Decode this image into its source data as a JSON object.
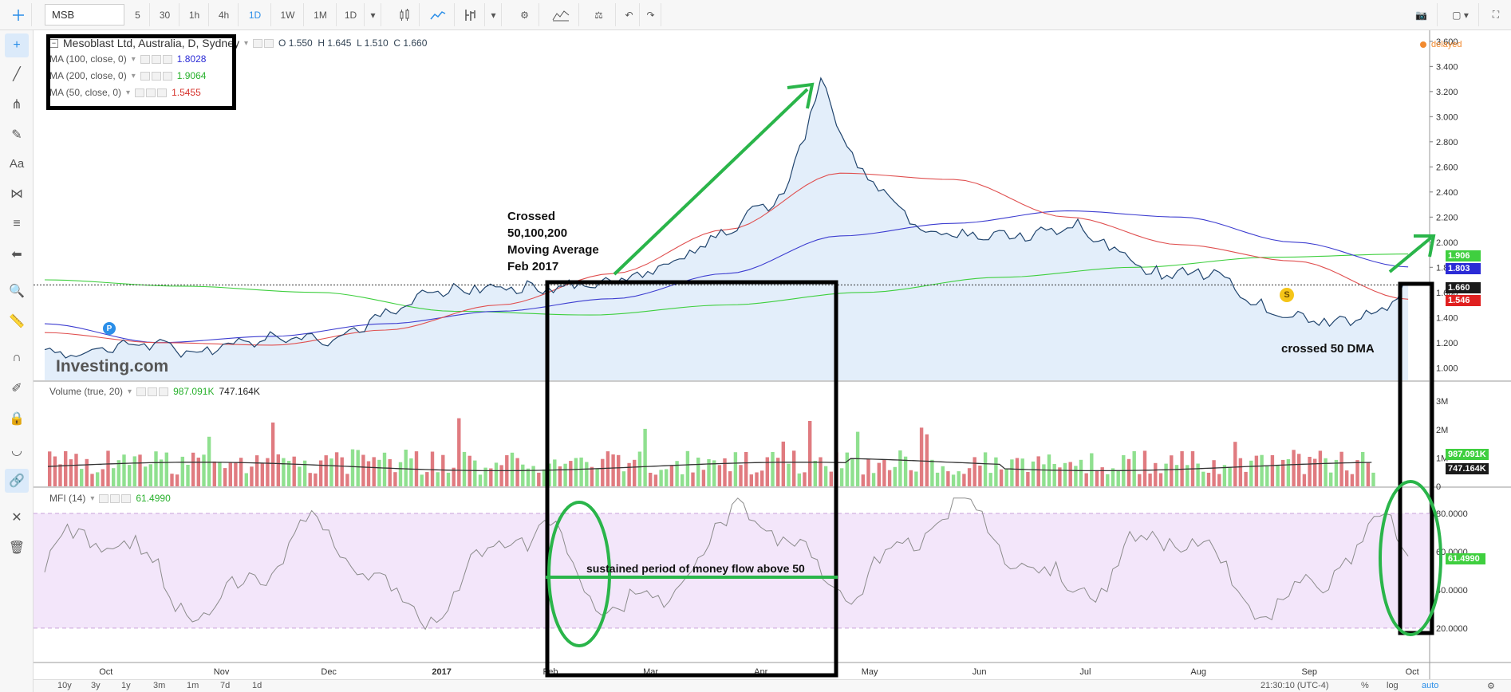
{
  "toolbar": {
    "symbol": "MSB",
    "intervals": [
      "5",
      "30",
      "1h",
      "4h",
      "1D",
      "1W",
      "1M"
    ],
    "active_interval": "1D",
    "dropdown_interval": "1D"
  },
  "legend": {
    "title": "Mesoblast Ltd, Australia, D, Sydney",
    "ohlc": "O 1.550  H 1.645  L 1.510  C 1.660",
    "ma100_label": "MA (100, close, 0)",
    "ma100_value": "1.8028",
    "ma200_label": "MA (200, close, 0)",
    "ma200_value": "1.9064",
    "ma50_label": "MA (50, close, 0)",
    "ma50_value": "1.5455",
    "delayed": "delayed"
  },
  "volume_legend": {
    "label": "Volume (true, 20)",
    "value1": "987.091K",
    "value2": "747.164K"
  },
  "mfi_legend": {
    "label": "MFI (14)",
    "value": "61.4990"
  },
  "annotations": {
    "crossed_1": "Crossed",
    "crossed_2": "50,100,200",
    "crossed_3": "Moving Average",
    "crossed_4": "Feb 2017",
    "crossed_50": "crossed 50 DMA",
    "mfi_note": "sustained period of money flow above 50"
  },
  "watermark": "Investing.com",
  "markers": {
    "p": "P",
    "s": "S"
  },
  "price_axis": [
    "3.600",
    "3.400",
    "3.200",
    "3.000",
    "2.800",
    "2.600",
    "2.400",
    "2.200",
    "2.000",
    "1.800",
    "1.600",
    "1.400",
    "1.200",
    "1.000"
  ],
  "volume_axis": [
    "3M",
    "2M",
    "1M",
    "0"
  ],
  "mfi_axis": [
    "80.0000",
    "60.0000",
    "40.0000",
    "20.0000"
  ],
  "tags": {
    "ma200": "1.906",
    "ma100": "1.803",
    "price": "1.660",
    "ma50": "1.546",
    "vol1": "987.091K",
    "vol2": "747.164K",
    "mfi": "61.4990"
  },
  "time_axis": [
    "Oct",
    "Nov",
    "Dec",
    "2017",
    "Feb",
    "Mar",
    "Apr",
    "May",
    "Jun",
    "Jul",
    "Aug",
    "Sep",
    "Oct"
  ],
  "bottom": {
    "ranges": [
      "10y",
      "3y",
      "1y",
      "3m",
      "1m",
      "7d",
      "1d"
    ],
    "clock": "21:30:10 (UTC-4)",
    "percent": "%",
    "log": "log",
    "auto": "auto"
  },
  "colors": {
    "price_line": "#21456e",
    "area_fill": "#e3eefa",
    "ma50": "#e05050",
    "ma100": "#3d3dd0",
    "ma200": "#3fcf3f",
    "vol_up": "#8fe08f",
    "vol_down": "#e07b80",
    "mfi_band": "#f3e6fa",
    "annotation_box": "#000000",
    "annotation_green": "#2ab54a"
  },
  "chart_data": {
    "type": "line",
    "price_series_anchors": {
      "x": [
        "2016-09-27",
        "2016-10-15",
        "2016-11-01",
        "2016-11-20",
        "2016-12-10",
        "2017-01-05",
        "2017-01-20",
        "2017-02-10",
        "2017-03-05",
        "2017-03-25",
        "2017-04-15",
        "2017-04-25",
        "2017-05-05",
        "2017-05-25",
        "2017-06-20",
        "2017-07-05",
        "2017-07-25",
        "2017-08-15",
        "2017-08-28",
        "2017-09-15",
        "2017-09-28",
        "2017-10-06"
      ],
      "y": [
        1.12,
        1.2,
        1.12,
        1.25,
        1.22,
        1.6,
        1.65,
        1.62,
        1.72,
        2.0,
        2.4,
        3.27,
        2.6,
        2.05,
        2.05,
        2.15,
        1.75,
        1.75,
        1.43,
        1.35,
        1.45,
        1.66
      ]
    },
    "ma50_anchors": [
      1.28,
      1.2,
      1.18,
      1.3,
      1.5,
      1.75,
      2.1,
      2.55,
      2.5,
      2.2,
      1.98,
      1.85,
      1.546
    ],
    "ma100_anchors": [
      1.35,
      1.2,
      1.25,
      1.35,
      1.45,
      1.55,
      1.75,
      2.05,
      2.15,
      2.25,
      2.2,
      2.0,
      1.803
    ],
    "ma200_anchors": [
      1.7,
      1.65,
      1.6,
      1.45,
      1.42,
      1.5,
      1.6,
      1.72,
      1.8,
      1.88,
      1.906
    ],
    "ylim": [
      0.9,
      3.65
    ]
  }
}
